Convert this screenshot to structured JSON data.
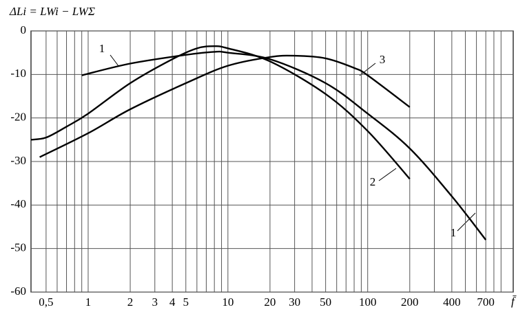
{
  "chart_data": {
    "type": "line",
    "log_x": true,
    "grid": true,
    "y_label": "ΔLi = LWi − LWΣ",
    "x_label": "f̄",
    "xlim": [
      0.39,
      1100
    ],
    "ylim": [
      -60,
      0
    ],
    "xticks": [
      {
        "value": 0.5,
        "label": "0,5"
      },
      1,
      2,
      3,
      4,
      5,
      10,
      20,
      30,
      50,
      100,
      200,
      400,
      700
    ],
    "x_minor_grid": [
      0.6,
      0.7,
      0.8,
      0.9,
      6,
      7,
      8,
      9,
      40,
      60,
      70,
      80,
      90,
      300,
      500,
      600,
      800,
      900
    ],
    "yticks": [
      0,
      -10,
      -20,
      -30,
      -40,
      -50,
      -60
    ],
    "series": [
      {
        "name": "1",
        "color": "#000000",
        "x": [
          0.9,
          2,
          5,
          8,
          10,
          20,
          50,
          100,
          200,
          400,
          700
        ],
        "values": [
          -10.2,
          -7.5,
          -5.5,
          -4.8,
          -5,
          -6.5,
          -12,
          -19,
          -27,
          -38,
          -48
        ]
      },
      {
        "name": "2",
        "color": "#000000",
        "x": [
          0.39,
          0.5,
          0.7,
          1,
          2,
          4,
          6,
          8,
          10,
          20,
          50,
          100,
          200
        ],
        "values": [
          -25,
          -24.5,
          -22,
          -19,
          -12,
          -6.5,
          -4,
          -3.5,
          -4,
          -7,
          -14.5,
          -23,
          -34
        ]
      },
      {
        "name": "3",
        "color": "#000000",
        "x": [
          0.45,
          1,
          2,
          5,
          10,
          20,
          30,
          50,
          80,
          100,
          200
        ],
        "values": [
          -29,
          -23.5,
          -18,
          -12,
          -8,
          -6,
          -5.7,
          -6.3,
          -8.5,
          -10.2,
          -17.5
        ]
      }
    ]
  }
}
